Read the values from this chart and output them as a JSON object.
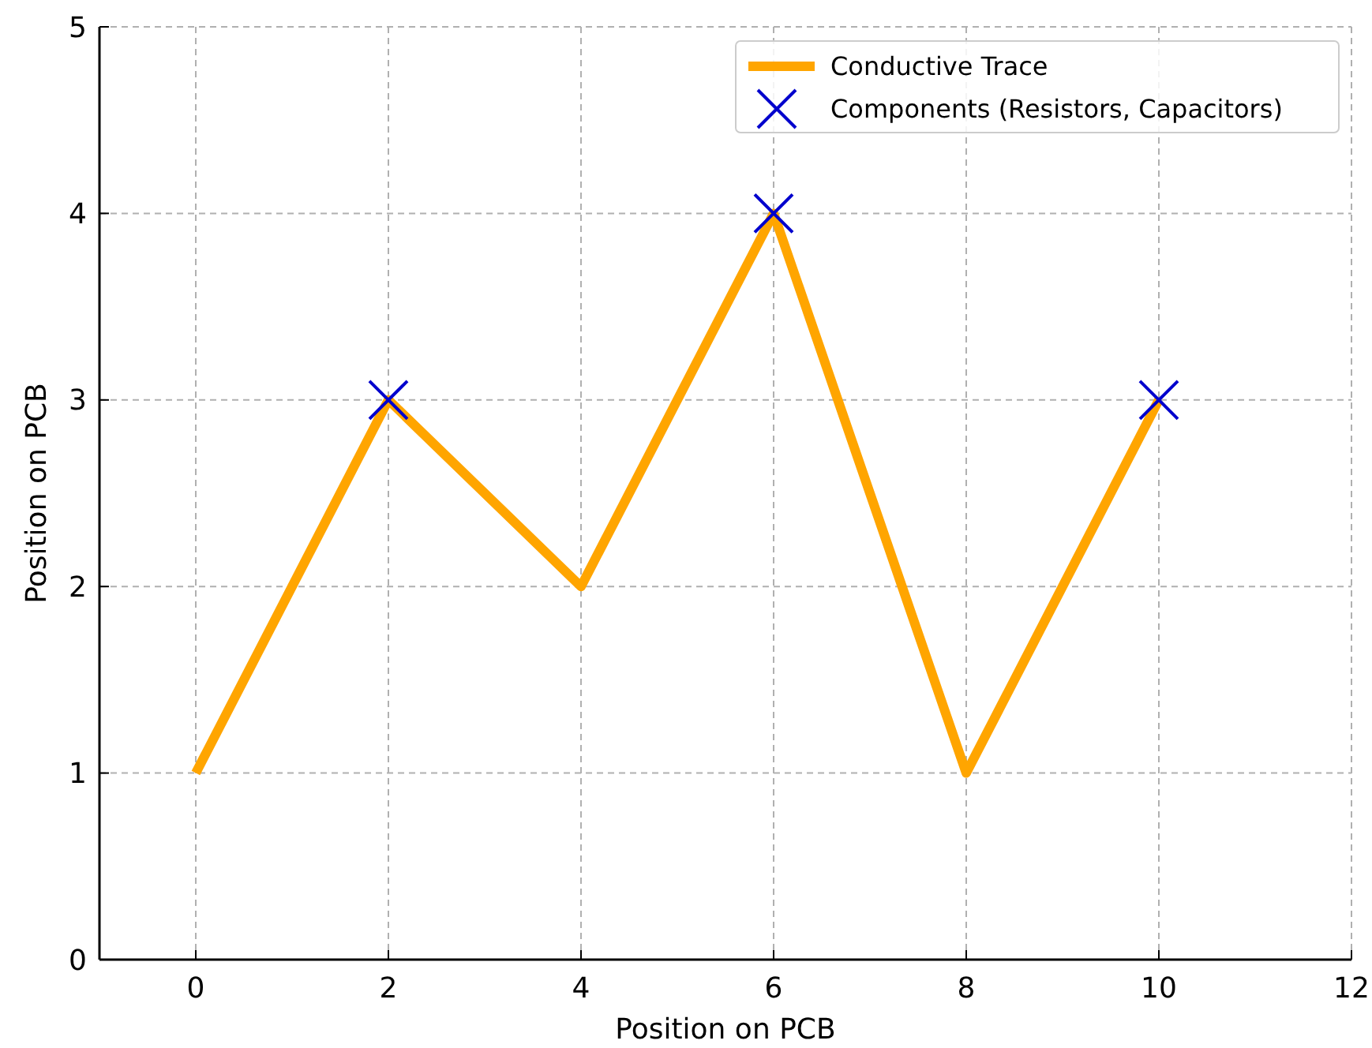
{
  "chart_data": {
    "type": "line",
    "xlabel": "Position on PCB",
    "ylabel": "Position on PCB",
    "xlim": [
      -1,
      12
    ],
    "ylim": [
      0,
      5
    ],
    "xticks": [
      0,
      2,
      4,
      6,
      8,
      10,
      12
    ],
    "yticks": [
      0,
      1,
      2,
      3,
      4,
      5
    ],
    "grid": true,
    "legend": "top right",
    "series": [
      {
        "name": "Conductive Trace",
        "color": "#ffa500",
        "x": [
          0,
          2,
          4,
          6,
          8,
          10
        ],
        "values": [
          1,
          3,
          2,
          4,
          1,
          3
        ],
        "line_style": "solid"
      },
      {
        "name": "Components (Resistors, Capacitors)",
        "type": "scatter",
        "color": "#0000cd",
        "x": [
          2,
          6,
          10
        ],
        "values": [
          3,
          4,
          3
        ],
        "marker": "cross"
      }
    ]
  }
}
